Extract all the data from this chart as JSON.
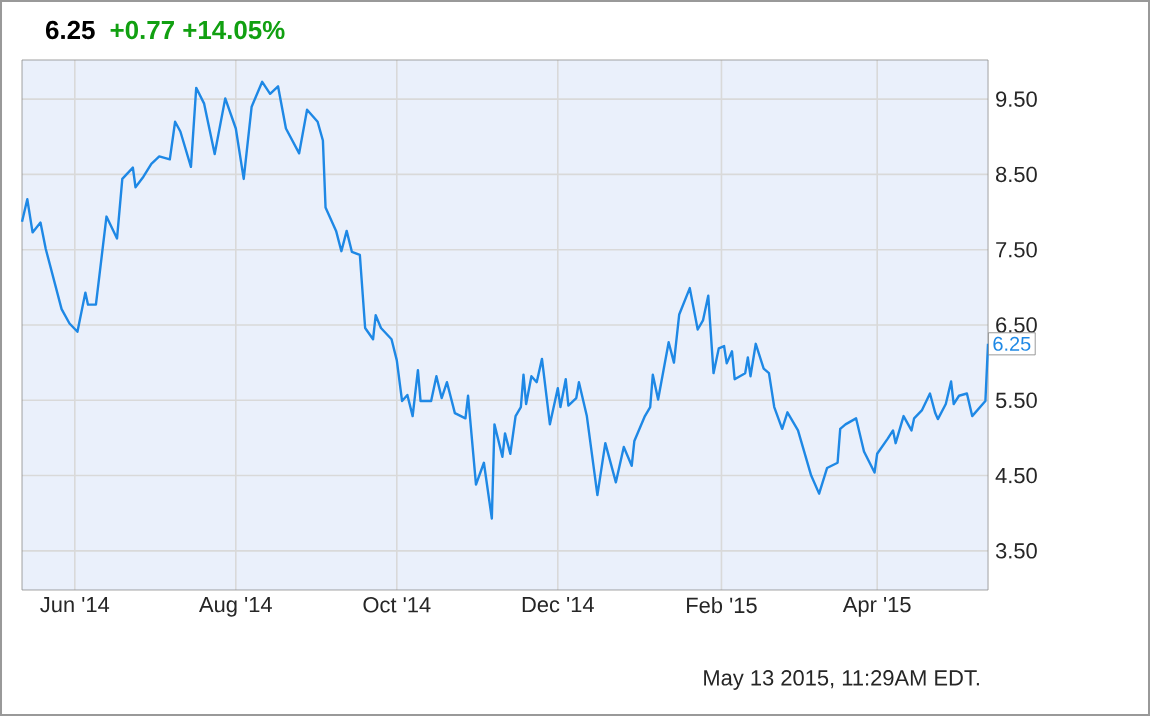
{
  "chart_data": {
    "type": "line",
    "title": "6.25",
    "subtitle": "+0.77 +14.05%",
    "x": [
      "2014-05-12",
      "2014-05-14",
      "2014-05-16",
      "2014-05-19",
      "2014-05-21",
      "2014-05-27",
      "2014-05-30",
      "2014-06-02",
      "2014-06-05",
      "2014-06-06",
      "2014-06-09",
      "2014-06-13",
      "2014-06-17",
      "2014-06-19",
      "2014-06-23",
      "2014-06-24",
      "2014-06-27",
      "2014-06-30",
      "2014-07-03",
      "2014-07-07",
      "2014-07-09",
      "2014-07-11",
      "2014-07-15",
      "2014-07-17",
      "2014-07-20",
      "2014-07-24",
      "2014-07-28",
      "2014-08-01",
      "2014-08-04",
      "2014-08-07",
      "2014-08-11",
      "2014-08-14",
      "2014-08-17",
      "2014-08-20",
      "2014-08-25",
      "2014-08-28",
      "2014-09-01",
      "2014-09-03",
      "2014-09-04",
      "2014-09-08",
      "2014-09-10",
      "2014-09-12",
      "2014-09-14",
      "2014-09-17",
      "2014-09-19",
      "2014-09-22",
      "2014-09-23",
      "2014-09-25",
      "2014-09-29",
      "2014-10-01",
      "2014-10-03",
      "2014-10-05",
      "2014-10-07",
      "2014-10-09",
      "2014-10-10",
      "2014-10-14",
      "2014-10-16",
      "2014-10-18",
      "2014-10-20",
      "2014-10-23",
      "2014-10-27",
      "2014-10-28",
      "2014-10-31",
      "2014-11-03",
      "2014-11-06",
      "2014-11-07",
      "2014-11-10",
      "2014-11-11",
      "2014-11-13",
      "2014-11-15",
      "2014-11-17",
      "2014-11-18",
      "2014-11-19",
      "2014-11-21",
      "2014-11-23",
      "2014-11-25",
      "2014-11-28",
      "2014-12-01",
      "2014-12-02",
      "2014-12-04",
      "2014-12-05",
      "2014-12-08",
      "2014-12-09",
      "2014-12-12",
      "2014-12-16",
      "2014-12-19",
      "2014-12-23",
      "2014-12-26",
      "2014-12-29",
      "2014-12-30",
      "2015-01-03",
      "2015-01-05",
      "2015-01-06",
      "2015-01-08",
      "2015-01-12",
      "2015-01-14",
      "2015-01-16",
      "2015-01-20",
      "2015-01-23",
      "2015-01-25",
      "2015-01-27",
      "2015-01-29",
      "2015-01-31",
      "2015-02-02",
      "2015-02-03",
      "2015-02-05",
      "2015-02-06",
      "2015-02-10",
      "2015-02-11",
      "2015-02-12",
      "2015-02-14",
      "2015-02-17",
      "2015-02-19",
      "2015-02-21",
      "2015-02-24",
      "2015-02-26",
      "2015-03-02",
      "2015-03-07",
      "2015-03-10",
      "2015-03-13",
      "2015-03-17",
      "2015-03-18",
      "2015-03-20",
      "2015-03-24",
      "2015-03-27",
      "2015-03-31",
      "2015-04-01",
      "2015-04-05",
      "2015-04-07",
      "2015-04-08",
      "2015-04-11",
      "2015-04-14",
      "2015-04-15",
      "2015-04-18",
      "2015-04-21",
      "2015-04-23",
      "2015-04-24",
      "2015-04-27",
      "2015-04-29",
      "2015-04-30",
      "2015-05-02",
      "2015-05-05",
      "2015-05-07",
      "2015-05-12",
      "2015-05-13"
    ],
    "values": [
      7.87,
      8.17,
      7.73,
      7.86,
      7.51,
      6.71,
      6.52,
      6.41,
      6.93,
      6.77,
      6.77,
      7.94,
      7.65,
      8.44,
      8.59,
      8.33,
      8.47,
      8.64,
      8.74,
      8.7,
      9.2,
      9.07,
      8.6,
      9.65,
      9.44,
      8.77,
      9.51,
      9.11,
      8.44,
      9.4,
      9.73,
      9.57,
      9.67,
      9.11,
      8.78,
      9.36,
      9.2,
      8.95,
      8.06,
      7.75,
      7.48,
      7.75,
      7.47,
      7.43,
      6.46,
      6.31,
      6.63,
      6.46,
      6.31,
      6.03,
      5.49,
      5.57,
      5.29,
      5.9,
      5.49,
      5.49,
      5.82,
      5.53,
      5.74,
      5.33,
      5.26,
      5.56,
      4.38,
      4.67,
      3.93,
      5.18,
      4.75,
      5.06,
      4.79,
      5.29,
      5.41,
      5.84,
      5.45,
      5.82,
      5.74,
      6.05,
      5.18,
      5.66,
      5.41,
      5.78,
      5.43,
      5.53,
      5.74,
      5.29,
      4.24,
      4.93,
      4.41,
      4.88,
      4.63,
      4.96,
      5.29,
      5.41,
      5.84,
      5.51,
      6.27,
      6.0,
      6.64,
      6.99,
      6.44,
      6.56,
      6.89,
      5.86,
      6.19,
      6.22,
      5.99,
      6.15,
      5.78,
      5.86,
      6.07,
      5.82,
      6.25,
      5.92,
      5.86,
      5.41,
      5.12,
      5.34,
      5.1,
      4.5,
      4.26,
      4.6,
      4.67,
      5.12,
      5.18,
      5.26,
      4.82,
      4.54,
      4.79,
      4.99,
      5.1,
      4.93,
      5.29,
      5.1,
      5.26,
      5.37,
      5.59,
      5.33,
      5.25,
      5.45,
      5.75,
      5.45,
      5.56,
      5.59,
      5.29,
      5.49,
      6.25
    ],
    "color": "#1e88e5",
    "xlim": [
      "2014-05-12",
      "2015-05-13"
    ],
    "xticks": [
      {
        "value": "2014-06-01",
        "label": "Jun '14"
      },
      {
        "value": "2014-08-01",
        "label": "Aug '14"
      },
      {
        "value": "2014-10-01",
        "label": "Oct '14"
      },
      {
        "value": "2014-12-01",
        "label": "Dec '14"
      },
      {
        "value": "2015-02-01",
        "label": "Feb '15"
      },
      {
        "value": "2015-04-01",
        "label": "Apr '15"
      }
    ],
    "ylim": [
      2.98,
      10.02
    ],
    "yticks": [
      {
        "value": 3.5,
        "label": "3.50"
      },
      {
        "value": 4.5,
        "label": "4.50"
      },
      {
        "value": 5.5,
        "label": "5.50"
      },
      {
        "value": 6.5,
        "label": "6.50"
      },
      {
        "value": 7.5,
        "label": "7.50"
      },
      {
        "value": 8.5,
        "label": "8.50"
      },
      {
        "value": 9.5,
        "label": "9.50"
      }
    ],
    "grid": true,
    "annotations": [
      {
        "text": "6.25",
        "x": "2015-05-13",
        "y": 6.25
      },
      "May 13 2015, 11:29AM EDT."
    ]
  }
}
